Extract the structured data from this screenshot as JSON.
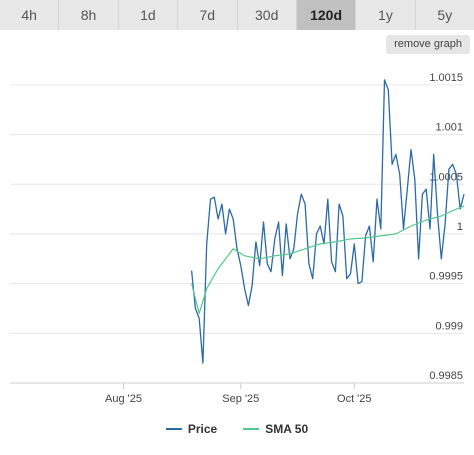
{
  "tabs": [
    {
      "label": "4h",
      "active": false
    },
    {
      "label": "8h",
      "active": false
    },
    {
      "label": "1d",
      "active": false
    },
    {
      "label": "7d",
      "active": false
    },
    {
      "label": "30d",
      "active": false
    },
    {
      "label": "120d",
      "active": true
    },
    {
      "label": "1y",
      "active": false
    },
    {
      "label": "5y",
      "active": false
    }
  ],
  "remove_graph_label": "remove graph",
  "colors": {
    "price": "#2b6aa8",
    "sma": "#52c98a",
    "grid": "#e6e6e6"
  },
  "chart_data": {
    "type": "line",
    "title": "",
    "xlabel": "",
    "ylabel": "",
    "ylim": [
      0.9985,
      1.0017
    ],
    "y_ticks": [
      0.9985,
      0.999,
      0.9995,
      1,
      1.0005,
      1.001,
      1.0015
    ],
    "y_tick_labels": [
      "0.9985",
      "0.999",
      "0.9995",
      "1",
      "1.0005",
      "1.001",
      "1.0015"
    ],
    "x_range": [
      "2025-07-02",
      "2025-10-30"
    ],
    "x_ticks": [
      {
        "date": "2025-08-01",
        "label": "Aug '25"
      },
      {
        "date": "2025-09-01",
        "label": "Sep '25"
      },
      {
        "date": "2025-10-01",
        "label": "Oct '25"
      }
    ],
    "grid": true,
    "legend": "bottom-center",
    "series": [
      {
        "name": "Price",
        "x": [
          "2025-08-19",
          "2025-08-20",
          "2025-08-21",
          "2025-08-22",
          "2025-08-23",
          "2025-08-24",
          "2025-08-25",
          "2025-08-26",
          "2025-08-27",
          "2025-08-28",
          "2025-08-29",
          "2025-08-30",
          "2025-08-31",
          "2025-09-01",
          "2025-09-02",
          "2025-09-03",
          "2025-09-04",
          "2025-09-05",
          "2025-09-06",
          "2025-09-07",
          "2025-09-08",
          "2025-09-09",
          "2025-09-10",
          "2025-09-11",
          "2025-09-12",
          "2025-09-13",
          "2025-09-14",
          "2025-09-15",
          "2025-09-16",
          "2025-09-17",
          "2025-09-18",
          "2025-09-19",
          "2025-09-20",
          "2025-09-21",
          "2025-09-22",
          "2025-09-23",
          "2025-09-24",
          "2025-09-25",
          "2025-09-26",
          "2025-09-27",
          "2025-09-28",
          "2025-09-29",
          "2025-09-30",
          "2025-10-01",
          "2025-10-02",
          "2025-10-03",
          "2025-10-04",
          "2025-10-05",
          "2025-10-06",
          "2025-10-07",
          "2025-10-08",
          "2025-10-09",
          "2025-10-10",
          "2025-10-11",
          "2025-10-12",
          "2025-10-13",
          "2025-10-14",
          "2025-10-15",
          "2025-10-16",
          "2025-10-17",
          "2025-10-18",
          "2025-10-19",
          "2025-10-20",
          "2025-10-21",
          "2025-10-22",
          "2025-10-23",
          "2025-10-24",
          "2025-10-25",
          "2025-10-26",
          "2025-10-27",
          "2025-10-28",
          "2025-10-29",
          "2025-10-30"
        ],
        "values": [
          0.99963,
          0.99925,
          0.99915,
          0.9987,
          0.9999,
          1.00035,
          1.00037,
          1.00015,
          1.0003,
          1.0,
          1.00025,
          1.00015,
          0.99985,
          0.99968,
          0.99945,
          0.99928,
          0.99948,
          0.99992,
          0.99968,
          1.00012,
          0.9997,
          0.99962,
          0.99995,
          1.00012,
          0.99958,
          1.0001,
          0.99975,
          0.99985,
          1.0002,
          1.0004,
          1.0003,
          0.9997,
          0.99955,
          1.0,
          1.00008,
          0.9999,
          1.00035,
          0.99972,
          0.99962,
          1.0003,
          1.00018,
          0.99955,
          0.9996,
          0.9999,
          0.9995,
          0.99952,
          0.99998,
          1.00008,
          0.99972,
          1.00035,
          1.00005,
          1.00155,
          1.00145,
          1.0007,
          1.0008,
          1.0006,
          1.00005,
          1.00045,
          1.00085,
          1.00055,
          0.99975,
          1.0004,
          1.00045,
          1.00005,
          1.0008,
          1.0002,
          0.99975,
          1.0001,
          1.00065,
          1.0007,
          1.0006,
          1.00025,
          1.0004
        ]
      },
      {
        "name": "SMA 50",
        "x": [
          "2025-08-19",
          "2025-08-21",
          "2025-08-23",
          "2025-08-26",
          "2025-08-30",
          "2025-09-02",
          "2025-09-06",
          "2025-09-10",
          "2025-09-14",
          "2025-09-18",
          "2025-09-22",
          "2025-09-26",
          "2025-09-30",
          "2025-10-04",
          "2025-10-08",
          "2025-10-12",
          "2025-10-16",
          "2025-10-20",
          "2025-10-24",
          "2025-10-28",
          "2025-10-30"
        ],
        "values": [
          0.9995,
          0.9992,
          0.99945,
          0.99965,
          0.99985,
          0.99978,
          0.99975,
          0.99978,
          0.9998,
          0.99985,
          0.9999,
          0.99992,
          0.99995,
          0.99996,
          0.99998,
          1.0,
          1.00008,
          1.00014,
          1.00018,
          1.00025,
          1.00028
        ]
      }
    ]
  }
}
